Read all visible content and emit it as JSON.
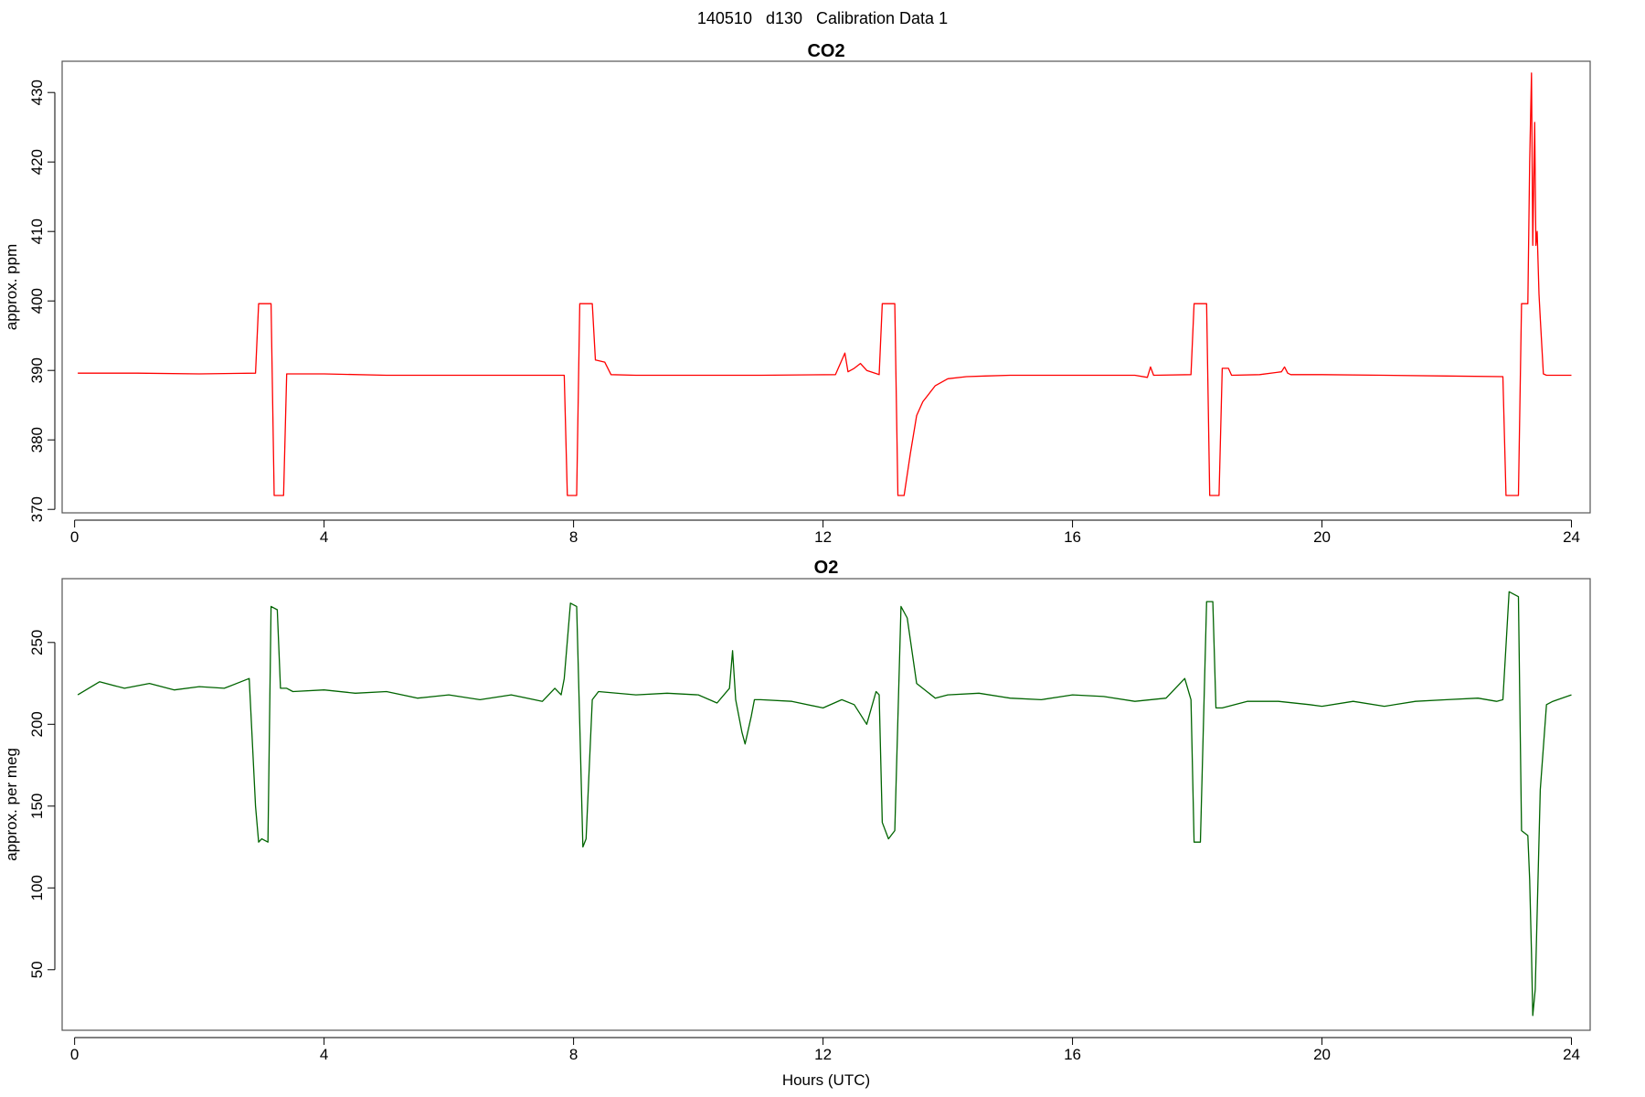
{
  "page": {
    "title": "140510   d130   Calibration Data 1"
  },
  "colors": {
    "co2": "#ff0000",
    "o2": "#006400",
    "axis": "#000000",
    "box": "#555555"
  },
  "chart_data": [
    {
      "type": "line",
      "title": "CO2",
      "xlabel": "",
      "ylabel": "approx. ppm",
      "xlim": [
        -0.2,
        24.3
      ],
      "ylim": [
        369.5,
        434.5
      ],
      "xticks": [
        "0",
        "4",
        "8",
        "12",
        "16",
        "20",
        "24"
      ],
      "yticks": [
        "370",
        "380",
        "390",
        "400",
        "410",
        "420",
        "430"
      ],
      "grid": false,
      "series": [
        {
          "color": "#ff0000",
          "x": [
            0.05,
            1.0,
            2.0,
            2.9,
            2.95,
            3.15,
            3.2,
            3.35,
            3.4,
            4.0,
            5.0,
            6.0,
            7.0,
            7.85,
            7.9,
            8.05,
            8.1,
            8.3,
            8.35,
            8.5,
            8.6,
            9.0,
            10.0,
            11.0,
            12.2,
            12.35,
            12.4,
            12.5,
            12.6,
            12.7,
            12.9,
            12.95,
            13.15,
            13.2,
            13.3,
            13.4,
            13.5,
            13.6,
            13.8,
            14.0,
            14.3,
            14.6,
            15.0,
            16.0,
            17.0,
            17.2,
            17.25,
            17.3,
            17.9,
            17.95,
            18.15,
            18.2,
            18.35,
            18.4,
            18.5,
            18.55,
            19.0,
            19.35,
            19.4,
            19.45,
            19.5,
            20.0,
            21.0,
            22.0,
            22.9,
            22.95,
            23.15,
            23.2,
            23.3,
            23.33,
            23.36,
            23.38,
            23.41,
            23.43,
            23.45,
            23.48,
            23.5,
            23.55,
            23.6,
            23.65,
            24.0
          ],
          "y": [
            389.6,
            389.6,
            389.5,
            389.6,
            399.6,
            399.6,
            372.0,
            372.0,
            389.5,
            389.5,
            389.3,
            389.3,
            389.3,
            389.3,
            372.0,
            372.0,
            399.6,
            399.6,
            391.5,
            391.2,
            389.4,
            389.3,
            389.3,
            389.3,
            389.4,
            392.5,
            389.8,
            390.3,
            391.0,
            390.0,
            389.4,
            399.6,
            399.6,
            372.0,
            372.0,
            378.0,
            383.5,
            385.5,
            387.8,
            388.8,
            389.1,
            389.2,
            389.3,
            389.3,
            389.3,
            389.0,
            390.5,
            389.3,
            389.4,
            399.6,
            399.6,
            372.0,
            372.0,
            390.3,
            390.3,
            389.3,
            389.4,
            389.8,
            390.5,
            389.6,
            389.4,
            389.4,
            389.3,
            389.2,
            389.1,
            372.0,
            372.0,
            399.6,
            399.6,
            420.0,
            432.8,
            408.0,
            425.7,
            408.0,
            410.0,
            401.0,
            397.5,
            389.5,
            389.3,
            389.3,
            389.3
          ]
        }
      ]
    },
    {
      "type": "line",
      "title": "O2",
      "xlabel": "Hours (UTC)",
      "ylabel": "approx. per meg",
      "xlim": [
        -0.2,
        24.3
      ],
      "ylim": [
        13,
        289
      ],
      "xticks": [
        "0",
        "4",
        "8",
        "12",
        "16",
        "20",
        "24"
      ],
      "yticks": [
        "50",
        "100",
        "150",
        "200",
        "250"
      ],
      "grid": false,
      "series": [
        {
          "color": "#006400",
          "x": [
            0.05,
            0.4,
            0.8,
            1.2,
            1.6,
            2.0,
            2.4,
            2.8,
            2.9,
            2.95,
            3.0,
            3.1,
            3.15,
            3.25,
            3.3,
            3.4,
            3.5,
            4.0,
            4.5,
            5.0,
            5.5,
            6.0,
            6.5,
            7.0,
            7.5,
            7.7,
            7.8,
            7.85,
            7.95,
            8.05,
            8.1,
            8.15,
            8.2,
            8.3,
            8.4,
            9.0,
            9.5,
            10.0,
            10.3,
            10.5,
            10.55,
            10.6,
            10.7,
            10.75,
            10.85,
            10.9,
            11.0,
            11.5,
            12.0,
            12.3,
            12.5,
            12.7,
            12.85,
            12.9,
            12.95,
            13.05,
            13.15,
            13.25,
            13.35,
            13.5,
            13.8,
            14.0,
            14.5,
            15.0,
            15.5,
            16.0,
            16.5,
            17.0,
            17.5,
            17.8,
            17.9,
            17.95,
            18.05,
            18.15,
            18.25,
            18.3,
            18.4,
            18.8,
            19.3,
            19.8,
            20.0,
            20.5,
            21.0,
            21.5,
            22.0,
            22.5,
            22.8,
            22.9,
            23.0,
            23.15,
            23.2,
            23.3,
            23.33,
            23.36,
            23.38,
            23.42,
            23.5,
            23.6,
            23.7,
            24.0
          ],
          "y": [
            218,
            226,
            222,
            225,
            221,
            223,
            222,
            228,
            150,
            128,
            130,
            128,
            272,
            270,
            222,
            222,
            220,
            221,
            219,
            220,
            216,
            218,
            215,
            218,
            214,
            222,
            218,
            228,
            274,
            272,
            200,
            125,
            130,
            215,
            220,
            218,
            219,
            218,
            213,
            222,
            245,
            215,
            195,
            188,
            205,
            215,
            215,
            214,
            210,
            215,
            212,
            200,
            220,
            218,
            140,
            130,
            135,
            272,
            265,
            225,
            216,
            218,
            219,
            216,
            215,
            218,
            217,
            214,
            216,
            228,
            215,
            128,
            128,
            275,
            275,
            210,
            210,
            214,
            214,
            212,
            211,
            214,
            211,
            214,
            215,
            216,
            214,
            215,
            281,
            278,
            135,
            132,
            105,
            60,
            22,
            38,
            160,
            212,
            214,
            218
          ]
        }
      ]
    }
  ]
}
